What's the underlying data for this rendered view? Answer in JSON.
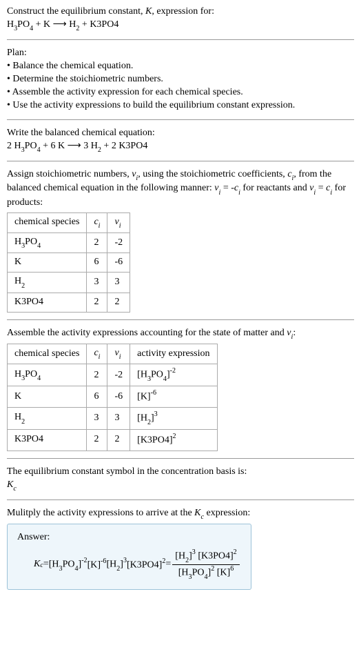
{
  "intro": {
    "line1_pre": "Construct the equilibrium constant, ",
    "K": "K",
    "line1_post": ", expression for:",
    "eq_lhs1": "H",
    "eq_lhs1_sub": "3",
    "eq_lhs1b": "PO",
    "eq_lhs1b_sub": "4",
    "plus": " + ",
    "eq_lhs2": "K",
    "arrow": " ⟶ ",
    "eq_rhs1": "H",
    "eq_rhs1_sub": "2",
    "eq_rhs2": "K3PO4"
  },
  "plan": {
    "title": "Plan:",
    "b1": "• Balance the chemical equation.",
    "b2": "• Determine the stoichiometric numbers.",
    "b3": "• Assemble the activity expression for each chemical species.",
    "b4": "• Use the activity expressions to build the equilibrium constant expression."
  },
  "balanced": {
    "title": "Write the balanced chemical equation:",
    "c1": "2 ",
    "s1a": "H",
    "s1a_sub": "3",
    "s1b": "PO",
    "s1b_sub": "4",
    "plus1": " + ",
    "c2": "6 K",
    "arrow": " ⟶ ",
    "c3": "3 ",
    "s3": "H",
    "s3_sub": "2",
    "plus2": " + ",
    "c4": "2 K3PO4"
  },
  "assign": {
    "line_pre": "Assign stoichiometric numbers, ",
    "nu": "ν",
    "nu_sub": "i",
    "mid1": ", using the stoichiometric coefficients, ",
    "c": "c",
    "c_sub": "i",
    "mid2": ", from the balanced chemical equation in the following manner: ",
    "rel1a": "ν",
    "rel1a_sub": "i",
    "rel1_eq": " = -",
    "rel1b": "c",
    "rel1b_sub": "i",
    "mid3": " for reactants and ",
    "rel2a": "ν",
    "rel2a_sub": "i",
    "rel2_eq": " = ",
    "rel2b": "c",
    "rel2b_sub": "i",
    "mid4": " for products:"
  },
  "table1": {
    "h1": "chemical species",
    "h2": "c",
    "h2_sub": "i",
    "h3": "ν",
    "h3_sub": "i",
    "r1": {
      "s": "H",
      "s1": "3",
      "s2": "PO",
      "s3": "4",
      "c": "2",
      "v": "-2"
    },
    "r2": {
      "s": "K",
      "c": "6",
      "v": "-6"
    },
    "r3": {
      "s": "H",
      "s1": "2",
      "c": "3",
      "v": "3"
    },
    "r4": {
      "s": "K3PO4",
      "c": "2",
      "v": "2"
    }
  },
  "assemble": {
    "line_pre": "Assemble the activity expressions accounting for the state of matter and ",
    "nu": "ν",
    "nu_sub": "i",
    "colon": ":"
  },
  "table2": {
    "h1": "chemical species",
    "h2": "c",
    "h2_sub": "i",
    "h3": "ν",
    "h3_sub": "i",
    "h4": "activity expression",
    "r1": {
      "s": "H",
      "s1": "3",
      "s2": "PO",
      "s3": "4",
      "c": "2",
      "v": "-2",
      "ae_l": "[H",
      "ae_s1": "3",
      "ae_m": "PO",
      "ae_s2": "4",
      "ae_r": "]",
      "ae_p": "-2"
    },
    "r2": {
      "s": "K",
      "c": "6",
      "v": "-6",
      "ae": "[K]",
      "ae_p": "-6"
    },
    "r3": {
      "s": "H",
      "s1": "2",
      "c": "3",
      "v": "3",
      "ae_l": "[H",
      "ae_s1": "2",
      "ae_r": "]",
      "ae_p": "3"
    },
    "r4": {
      "s": "K3PO4",
      "c": "2",
      "v": "2",
      "ae": "[K3PO4]",
      "ae_p": "2"
    }
  },
  "symbol": {
    "line": "The equilibrium constant symbol in the concentration basis is:",
    "K": "K",
    "K_sub": "c"
  },
  "multiply": {
    "line_pre": "Mulitply the activity expressions to arrive at the ",
    "K": "K",
    "K_sub": "c",
    "line_post": " expression:"
  },
  "answer": {
    "label": "Answer:",
    "K": "K",
    "K_sub": "c",
    "eq": " = ",
    "t1_l": "[H",
    "t1_s1": "3",
    "t1_m": "PO",
    "t1_s2": "4",
    "t1_r": "]",
    "t1_p": "-2",
    "sp": " ",
    "t2": "[K]",
    "t2_p": "-6",
    "t3_l": "[H",
    "t3_s1": "2",
    "t3_r": "]",
    "t3_p": "3",
    "t4": "[K3PO4]",
    "t4_p": "2",
    "eq2": " = ",
    "num_a_l": "[H",
    "num_a_s": "2",
    "num_a_r": "]",
    "num_a_p": "3",
    "num_b": "[K3PO4]",
    "num_b_p": "2",
    "den_a_l": "[H",
    "den_a_s1": "3",
    "den_a_m": "PO",
    "den_a_s2": "4",
    "den_a_r": "]",
    "den_a_p": "2",
    "den_b": "[K]",
    "den_b_p": "6"
  }
}
